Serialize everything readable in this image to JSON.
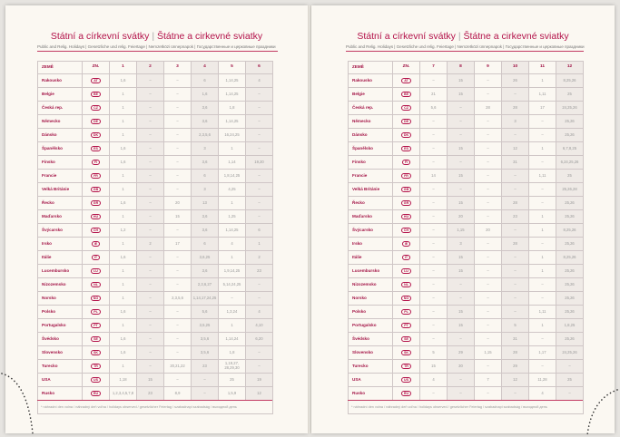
{
  "title_cz": "Státní a církevní svátky",
  "title_sk": "Štátne a cirkevné sviatky",
  "subtitle": "Public and Relig. Holidays | Gesetzliche und relig. Feiertage | Nemzetközi ünnepnapok | Государственные и церковные праздники",
  "headers": {
    "country": "ZEMĚ",
    "code": "ZN."
  },
  "footnote": "* náhradní den volna / náhradný deň voľna / holidays observed / gesetzlicher Feiertag / szabadnapi szabadság / выходной день",
  "accent_color": "#b3124a",
  "left": {
    "months": [
      "1",
      "2",
      "3",
      "4",
      "5",
      "6"
    ],
    "rows": [
      [
        "Rakousko",
        "AT",
        "1,6",
        "–",
        "–",
        "6",
        "1,14,25",
        "4"
      ],
      [
        "Belgie",
        "BE",
        "1",
        "–",
        "–",
        "1,6",
        "1,14,25",
        "–"
      ],
      [
        "Česká rep.",
        "CZ",
        "1",
        "–",
        "–",
        "3,6",
        "1,8",
        "–"
      ],
      [
        "Německo",
        "DE",
        "1",
        "–",
        "–",
        "3,6",
        "1,14,25",
        "–"
      ],
      [
        "Dánsko",
        "DK",
        "1",
        "–",
        "–",
        "2,3,5,6",
        "16,24,25",
        "–"
      ],
      [
        "Španělsko",
        "ES",
        "1,6",
        "–",
        "–",
        "3",
        "1",
        "–"
      ],
      [
        "Finsko",
        "FI",
        "1,6",
        "–",
        "–",
        "3,6",
        "1,14",
        "19,20"
      ],
      [
        "Francie",
        "FR",
        "1",
        "–",
        "–",
        "6",
        "1,8,14,25",
        "–"
      ],
      [
        "Velká Británie",
        "GB",
        "1",
        "–",
        "–",
        "3",
        "4,25",
        "–"
      ],
      [
        "Řecko",
        "GR",
        "1,6",
        "–",
        "20",
        "13",
        "1",
        "–"
      ],
      [
        "Maďarsko",
        "HU",
        "1",
        "–",
        "15",
        "3,6",
        "1,25",
        "–"
      ],
      [
        "Švýcarsko",
        "CH",
        "1,2",
        "–",
        "–",
        "3,6",
        "1,14,25",
        "6"
      ],
      [
        "Irsko",
        "IE",
        "1",
        "2",
        "17",
        "6",
        "4",
        "1"
      ],
      [
        "Itálie",
        "IT",
        "1,6",
        "–",
        "–",
        "3,6,25",
        "1",
        "2"
      ],
      [
        "Lucembursko",
        "LU",
        "1",
        "–",
        "–",
        "3,6",
        "1,9,14,25",
        "23"
      ],
      [
        "Nizozemsko",
        "NL",
        "1",
        "–",
        "–",
        "2,3,6,27",
        "5,14,24,25",
        "–"
      ],
      [
        "Norsko",
        "NO",
        "1",
        "–",
        "2,3,5,6",
        "1,14,17,24,25",
        "–",
        "–"
      ],
      [
        "Polsko",
        "PL",
        "1,6",
        "–",
        "–",
        "5,6",
        "1,3,24",
        "4"
      ],
      [
        "Portugalsko",
        "PT",
        "1",
        "–",
        "–",
        "3,5,25",
        "1",
        "4,10"
      ],
      [
        "Švédsko",
        "SE",
        "1,6",
        "–",
        "–",
        "3,5,6",
        "1,14,24",
        "6,20"
      ],
      [
        "Slovensko",
        "SK",
        "1,6",
        "–",
        "–",
        "3,5,6",
        "1,8",
        "–"
      ],
      [
        "Turecko",
        "TR",
        "1",
        "–",
        "20,21,22",
        "23",
        "1,19,27, 28,29,30",
        "–"
      ],
      [
        "USA",
        "US",
        "1,18",
        "15",
        "–",
        "–",
        "25",
        "19"
      ],
      [
        "Rusko",
        "RU",
        "1,2,3,4,5,7,8",
        "23",
        "8,9",
        "–",
        "1,5,9",
        "12"
      ]
    ]
  },
  "right": {
    "months": [
      "7",
      "8",
      "9",
      "10",
      "11",
      "12"
    ],
    "rows": [
      [
        "Rakousko",
        "AT",
        "–",
        "15",
        "–",
        "26",
        "1",
        "8,25,26"
      ],
      [
        "Belgie",
        "BE",
        "21",
        "15",
        "–",
        "–",
        "1,11",
        "25"
      ],
      [
        "Česká rep.",
        "CZ",
        "5,6",
        "–",
        "28",
        "28",
        "17",
        "24,25,26"
      ],
      [
        "Německo",
        "DE",
        "–",
        "–",
        "–",
        "3",
        "–",
        "25,26"
      ],
      [
        "Dánsko",
        "DK",
        "–",
        "–",
        "–",
        "–",
        "–",
        "25,26"
      ],
      [
        "Španělsko",
        "ES",
        "–",
        "15",
        "–",
        "12",
        "1",
        "6,7,8,25"
      ],
      [
        "Finsko",
        "FI",
        "–",
        "–",
        "–",
        "31",
        "–",
        "6,24,25,26"
      ],
      [
        "Francie",
        "FR",
        "14",
        "15",
        "–",
        "–",
        "1,11",
        "25"
      ],
      [
        "Velká Británie",
        "GB",
        "–",
        "–",
        "–",
        "–",
        "–",
        "25,26,28"
      ],
      [
        "Řecko",
        "GR",
        "–",
        "15",
        "–",
        "28",
        "–",
        "25,26"
      ],
      [
        "Maďarsko",
        "HU",
        "–",
        "20",
        "–",
        "23",
        "1",
        "25,26"
      ],
      [
        "Švýcarsko",
        "CH",
        "–",
        "1,15",
        "20",
        "–",
        "1",
        "8,25,26"
      ],
      [
        "Irsko",
        "IE",
        "–",
        "3",
        "–",
        "28",
        "–",
        "25,26"
      ],
      [
        "Itálie",
        "IT",
        "–",
        "15",
        "–",
        "–",
        "1",
        "8,25,26"
      ],
      [
        "Lucembursko",
        "LU",
        "–",
        "15",
        "–",
        "–",
        "1",
        "25,26"
      ],
      [
        "Nizozemsko",
        "NL",
        "–",
        "–",
        "–",
        "–",
        "–",
        "25,26"
      ],
      [
        "Norsko",
        "NO",
        "–",
        "–",
        "–",
        "–",
        "–",
        "25,26"
      ],
      [
        "Polsko",
        "PL",
        "–",
        "15",
        "–",
        "–",
        "1,11",
        "25,26"
      ],
      [
        "Portugalsko",
        "PT",
        "–",
        "15",
        "–",
        "5",
        "1",
        "1,8,25"
      ],
      [
        "Švédsko",
        "SE",
        "–",
        "–",
        "–",
        "31",
        "–",
        "25,26"
      ],
      [
        "Slovensko",
        "SK",
        "5",
        "29",
        "1,15",
        "28",
        "1,17",
        "24,25,26"
      ],
      [
        "Turecko",
        "TR",
        "15",
        "30",
        "–",
        "29",
        "–",
        "–"
      ],
      [
        "USA",
        "US",
        "4",
        "–",
        "7",
        "12",
        "11,28",
        "25"
      ],
      [
        "Rusko",
        "RU",
        "–",
        "–",
        "–",
        "–",
        "4",
        "–"
      ]
    ]
  }
}
